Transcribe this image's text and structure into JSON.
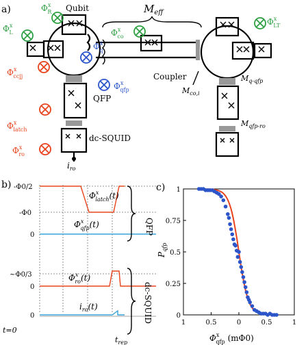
{
  "panel_a": {
    "label": "a)",
    "qubit": "Qubit",
    "coupler": "Coupler",
    "qfp": "QFP",
    "dc_squid": "dc-SQUID",
    "m_eff": "M",
    "m_eff_sub": "eff",
    "m_co": "M",
    "m_co_sub": "co,i",
    "m_qqfp": "M",
    "m_qqfp_sub": "q-qfp",
    "m_qfpro": "M",
    "m_qfpro_sub": "qfp-ro",
    "i_ro": "i",
    "i_ro_sub": "ro",
    "fluxes": {
      "R": {
        "sym": "Φ",
        "sup": "x",
        "sub": "R",
        "color": "#2ea043"
      },
      "L": {
        "sym": "Φ",
        "sup": "x",
        "sub": "L",
        "color": "#2ea043"
      },
      "co": {
        "sym": "Φ",
        "sup": "x",
        "sub": "co",
        "color": "#2ea043"
      },
      "LT": {
        "sym": "Φ",
        "sup": "x",
        "sub": "LT",
        "color": "#2ea043"
      },
      "q": {
        "sym": "Φ",
        "sup": "x",
        "sub": "q",
        "color": "#2c55c9"
      },
      "qfp": {
        "sym": "Φ",
        "sup": "x",
        "sub": "qfp",
        "color": "#2c55c9"
      },
      "ccjj": {
        "sym": "Φ",
        "sup": "x",
        "sub": "ccjj",
        "color": "#e8431c"
      },
      "latch": {
        "sym": "Φ",
        "sup": "x",
        "sub": "latch",
        "color": "#e8431c"
      },
      "ro": {
        "sym": "Φ",
        "sup": "x",
        "sub": "ro",
        "color": "#e8431c"
      }
    }
  },
  "panel_b": {
    "label": "b)",
    "tick_neg_half": "-Φ0/2",
    "tick_neg": "-Φ0",
    "zero": "0",
    "tick_third": "~Φ0/3",
    "latch_lbl": "Φ",
    "latch_sub": "latch",
    "latch_arg": "(t)",
    "qfp_lbl": "Φ",
    "qfp_sub": "qfp",
    "qfp_arg": "(t)",
    "ro_lbl": "Φ",
    "ro_sub": "ro",
    "ro_arg": "(t)",
    "iro_lbl": "i",
    "iro_sub": "ro",
    "iro_arg": "(t)",
    "sup_x": "x",
    "t0": "t=0",
    "trep": "t",
    "trep_sub": "rep",
    "brace_qfp": "QFP",
    "brace_dcsquid": "dc-SQUID"
  },
  "panel_c": {
    "label": "c)",
    "ylabel": "P",
    "ylabel_sub": "qfp",
    "xlabel": "Φ",
    "xlabel_sup": "x",
    "xlabel_sub": "qfp",
    "xlabel_unit": "(mΦ0)",
    "yticks": [
      "1",
      "0.75",
      "0.5",
      "0.25",
      "0"
    ],
    "xticks": [
      "1",
      "0.5",
      "0",
      "0.5",
      "1"
    ]
  },
  "chart_data": {
    "type": "scatter",
    "xlim": [
      -1,
      1
    ],
    "ylim": [
      0,
      1
    ],
    "x": [
      -0.72,
      -0.68,
      -0.64,
      -0.6,
      -0.56,
      -0.52,
      -0.48,
      -0.44,
      -0.4,
      -0.36,
      -0.32,
      -0.28,
      -0.24,
      -0.2,
      -0.18,
      -0.16,
      -0.14,
      -0.12,
      -0.1,
      -0.08,
      -0.06,
      -0.04,
      -0.02,
      0.0,
      0.02,
      0.04,
      0.06,
      0.08,
      0.1,
      0.12,
      0.14,
      0.16,
      0.18,
      0.2,
      0.24,
      0.28,
      0.32,
      0.36,
      0.4,
      0.44,
      0.48,
      0.52,
      0.56,
      0.6,
      0.64,
      0.68
    ],
    "y": [
      1.0,
      1.0,
      1.0,
      0.99,
      0.99,
      0.99,
      0.99,
      0.98,
      0.97,
      0.96,
      0.94,
      0.91,
      0.86,
      0.8,
      0.77,
      0.72,
      0.68,
      0.64,
      0.6,
      0.56,
      0.55,
      0.51,
      0.46,
      0.5,
      0.42,
      0.38,
      0.34,
      0.3,
      0.26,
      0.22,
      0.18,
      0.14,
      0.12,
      0.1,
      0.07,
      0.04,
      0.03,
      0.02,
      0.01,
      0.01,
      0.01,
      0.0,
      0.01,
      0.0,
      0.0,
      0.0
    ],
    "fit": {
      "type": "line",
      "label": ""
    }
  }
}
